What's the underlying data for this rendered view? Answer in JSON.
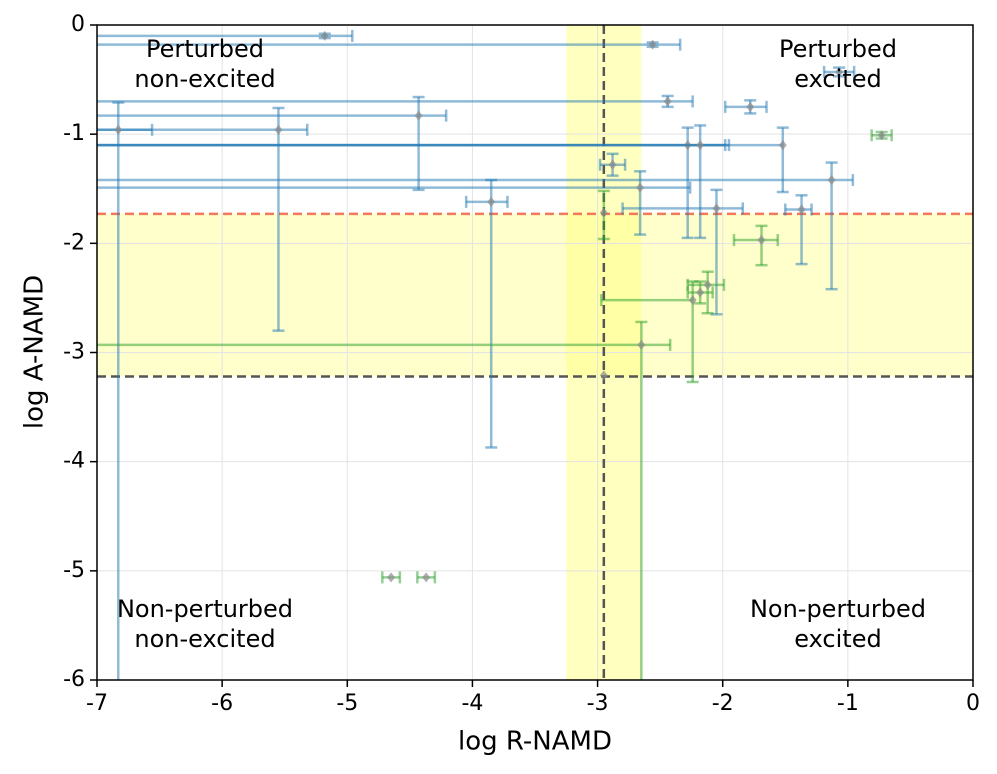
{
  "chart_data": {
    "type": "errorbar_scatter",
    "xlabel": "log R-NAMD",
    "ylabel": "log A-NAMD",
    "xlim": [
      -7,
      0
    ],
    "ylim": [
      -6,
      0
    ],
    "xticks": [
      -7,
      -6,
      -5,
      -4,
      -3,
      -2,
      -1,
      0
    ],
    "yticks": [
      -6,
      -5,
      -4,
      -3,
      -2,
      -1,
      0
    ],
    "grid": true,
    "marker_color": "#8c8c8c",
    "hband": [
      -3.22,
      -1.73
    ],
    "vband": [
      -3.25,
      -2.65
    ],
    "band_color": "#ffff80",
    "hlines": [
      {
        "value": -1.73,
        "color": "#f4795b"
      },
      {
        "value": -3.22,
        "color": "#555555"
      }
    ],
    "vline": {
      "value": -2.95,
      "color": "#555555"
    },
    "annotations": [
      [
        "Perturbed",
        "non-excited"
      ],
      [
        "Perturbed",
        "excited"
      ],
      [
        "Non-perturbed",
        "non-excited"
      ],
      [
        "Non-perturbed",
        "excited"
      ]
    ],
    "series": [
      {
        "color": "#1f77b4",
        "x": [
          -5.18,
          -2.56,
          -1.07,
          -2.44,
          -1.78,
          -4.43,
          -5.55,
          -6.83,
          -1.52,
          -2.28,
          -2.18,
          -1.13,
          -2.88,
          -2.66,
          -3.85,
          -2.05,
          -1.37,
          -2.95
        ],
        "y": [
          -0.1,
          -0.18,
          -0.43,
          -0.7,
          -0.75,
          -0.83,
          -0.96,
          -0.96,
          -1.1,
          -1.1,
          -1.1,
          -1.42,
          -1.28,
          -1.49,
          -1.62,
          -1.68,
          -1.69,
          -3.21
        ],
        "xerr_minus": [
          2,
          4.5,
          0.12,
          4.6,
          0.2,
          2.6,
          1.5,
          0.2,
          5.5,
          4.8,
          4.9,
          5.9,
          0.1,
          4.4,
          0.2,
          0.75,
          0.13,
          0
        ],
        "xerr_plus": [
          0.22,
          0.22,
          0.12,
          0.2,
          0.13,
          0.22,
          0.23,
          0.27,
          0,
          0.33,
          0.2,
          0.17,
          0.1,
          0.4,
          0.13,
          0.21,
          0.08,
          0
        ],
        "yerr_minus": [
          0.02,
          0.02,
          0.04,
          0.05,
          0.06,
          0.68,
          1.84,
          6,
          0.43,
          0.85,
          0.85,
          1.0,
          0.1,
          0.43,
          2.25,
          0.97,
          0.5,
          0
        ],
        "yerr_plus": [
          0.02,
          0.02,
          0.04,
          0.05,
          0.06,
          0.17,
          0.2,
          0.25,
          0.16,
          0.16,
          0.18,
          0.16,
          0.1,
          0.15,
          0.2,
          0.17,
          0.13,
          0
        ]
      },
      {
        "color": "#2ca02c",
        "x": [
          -0.73,
          -2.95,
          -1.69,
          -2.24,
          -2.12,
          -2.18,
          -2.65,
          -4.65,
          -4.37
        ],
        "y": [
          -1.01,
          -1.72,
          -1.97,
          -2.52,
          -2.38,
          -2.45,
          -2.93,
          -5.06,
          -5.06
        ],
        "xerr_minus": [
          0.08,
          0,
          0.22,
          0.73,
          0.16,
          0.1,
          4.5,
          0.07,
          0.07
        ],
        "xerr_plus": [
          0.08,
          0,
          0.13,
          0,
          0.13,
          0.1,
          0.23,
          0.07,
          0.07
        ],
        "yerr_minus": [
          0.03,
          0.24,
          0.23,
          0.75,
          0.26,
          0.1,
          4,
          0,
          0
        ],
        "yerr_plus": [
          0.03,
          0.2,
          0.13,
          0.17,
          0.12,
          0.1,
          0.21,
          0,
          0
        ]
      }
    ]
  }
}
